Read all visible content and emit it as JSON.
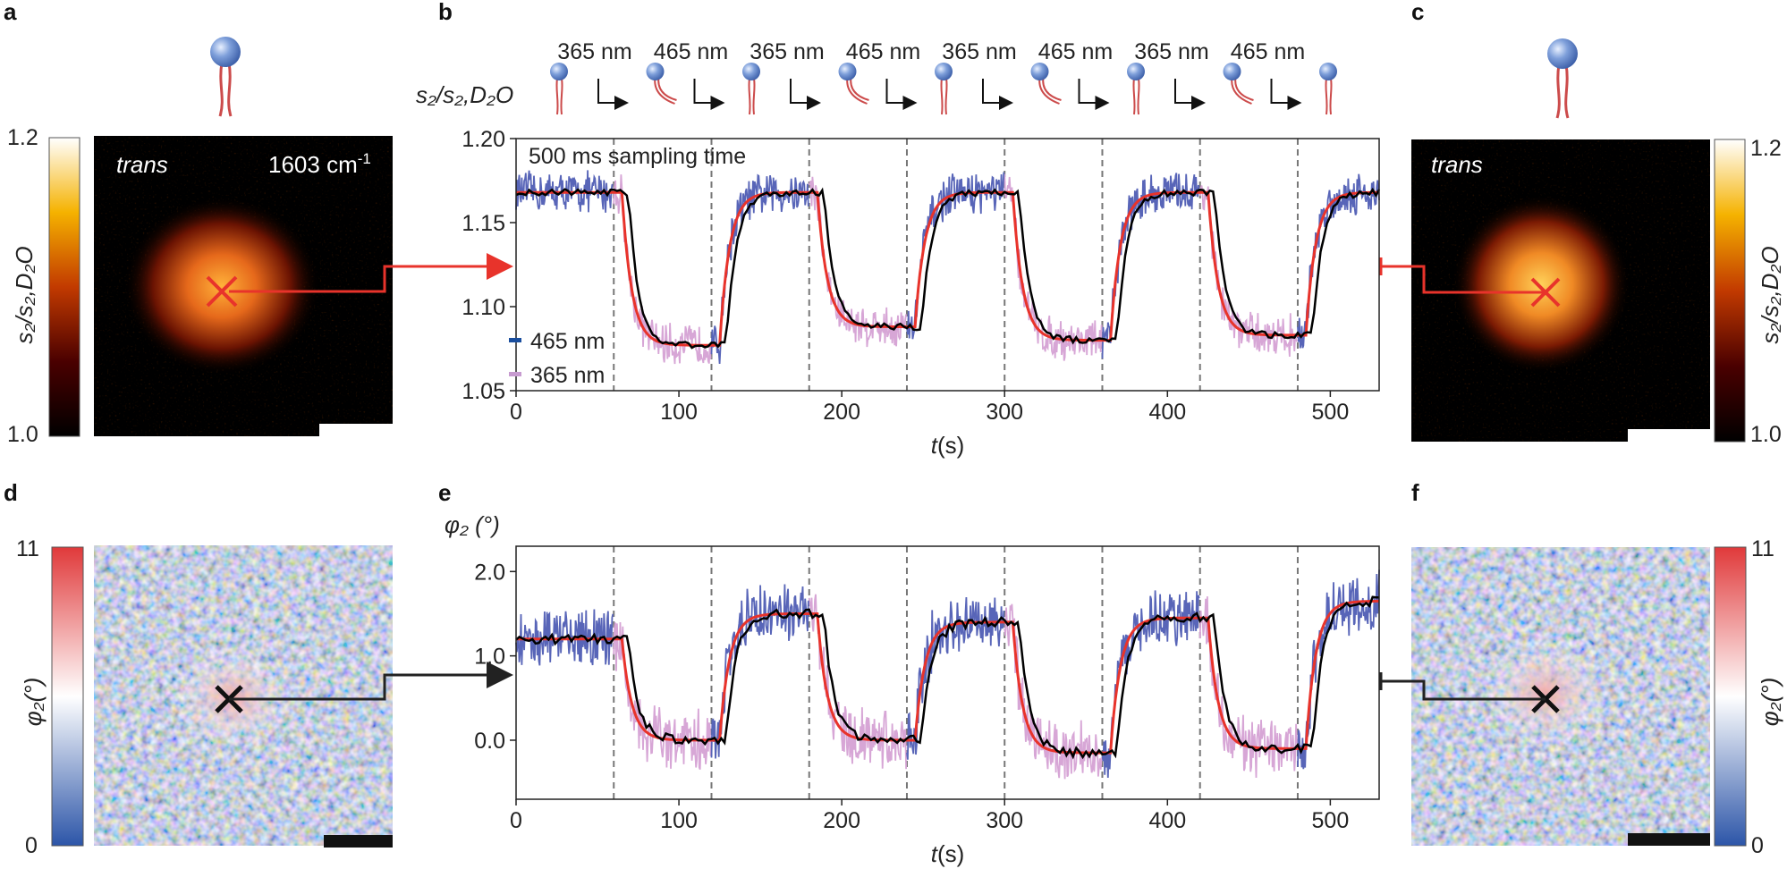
{
  "panels": {
    "a": {
      "label": "a",
      "image_label": "trans",
      "wavenumber": "1603",
      "wavenumber_unit": "cm",
      "wavenumber_exp": "-1",
      "colorbar": {
        "max": "1.2",
        "min": "1.0",
        "label": "s₂/s₂,D₂O"
      }
    },
    "b": {
      "label": "b"
    },
    "c": {
      "label": "c",
      "image_label": "trans",
      "colorbar": {
        "max": "1.2",
        "min": "1.0",
        "label": "s₂/s₂,D₂O"
      }
    },
    "d": {
      "label": "d",
      "colorbar": {
        "max": "11",
        "min": "0",
        "label": "φ₂(°)"
      }
    },
    "e": {
      "label": "e"
    },
    "f": {
      "label": "f",
      "colorbar": {
        "max": "11",
        "min": "0",
        "label": "φ₂(°)"
      }
    }
  },
  "illumination_sequence": [
    "365 nm",
    "465 nm",
    "365 nm",
    "465 nm",
    "365 nm",
    "465 nm",
    "365 nm",
    "465 nm"
  ],
  "colors": {
    "nm365": "#c79bd0",
    "nm465": "#1a4e9e",
    "fit": "#e8332b",
    "avg": "#000000",
    "raw_blue": "#5865b8",
    "raw_pink": "#d7a6d6"
  },
  "chart_data": [
    {
      "type": "line",
      "panel": "b",
      "ylabel": "s₂/s₂,D₂O",
      "xlabel": "t(s)",
      "annotation": "500 ms sampling time",
      "xlim": [
        0,
        530
      ],
      "ylim": [
        1.05,
        1.2
      ],
      "xticks": [
        "0",
        "100",
        "200",
        "300",
        "400",
        "500"
      ],
      "yticks": [
        "1.05",
        "1.10",
        "1.15",
        "1.20"
      ],
      "dashed_lines_x": [
        60,
        120,
        180,
        240,
        300,
        360,
        420,
        480
      ],
      "legend": [
        {
          "name": "465 nm"
        },
        {
          "name": "365 nm"
        }
      ],
      "high_levels": [
        1.168,
        1.168,
        1.168,
        1.168,
        1.168
      ],
      "low_levels": [
        1.077,
        1.088,
        1.08,
        1.083
      ],
      "series": [
        {
          "name": "465 nm",
          "style": "raw noisy trace during 465 nm illumination"
        },
        {
          "name": "365 nm",
          "style": "raw noisy trace during 365 nm illumination"
        },
        {
          "name": "fit",
          "style": "red step fit"
        },
        {
          "name": "average",
          "style": "black running average"
        }
      ]
    },
    {
      "type": "line",
      "panel": "e",
      "ylabel": "φ₂ (°)",
      "xlabel": "t(s)",
      "xlim": [
        0,
        530
      ],
      "ylim": [
        -0.7,
        2.3
      ],
      "xticks": [
        "0",
        "100",
        "200",
        "300",
        "400",
        "500"
      ],
      "yticks": [
        "0.0",
        "1.0",
        "2.0"
      ],
      "dashed_lines_x": [
        60,
        120,
        180,
        240,
        300,
        360,
        420,
        480
      ],
      "high_levels": [
        1.2,
        1.5,
        1.4,
        1.45,
        1.65
      ],
      "low_levels": [
        0.0,
        0.0,
        -0.15,
        -0.1
      ]
    }
  ]
}
